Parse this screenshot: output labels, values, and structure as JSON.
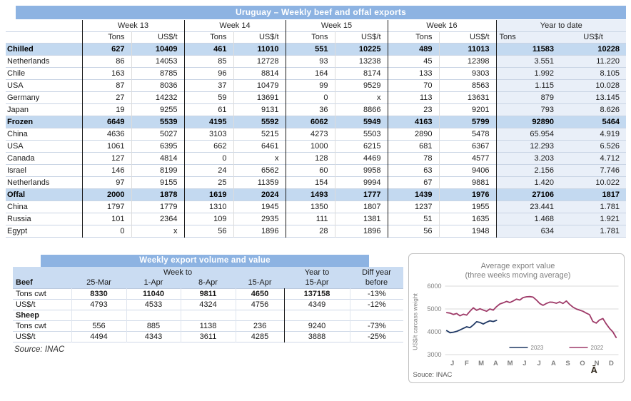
{
  "table1": {
    "title": "Uruguay – Weekly beef and offal exports",
    "week_labels": [
      "Week 13",
      "Week 14",
      "Week 15",
      "Week 16"
    ],
    "ytd_label": "Year to date",
    "tons_label": "Tons",
    "usd_label": "US$/t",
    "rows": [
      {
        "label": "Chilled",
        "bold": true,
        "values": [
          "627",
          "10409",
          "461",
          "11010",
          "551",
          "10225",
          "489",
          "11013",
          "11583",
          "10228"
        ]
      },
      {
        "label": "Netherlands",
        "values": [
          "86",
          "14053",
          "85",
          "12728",
          "93",
          "13238",
          "45",
          "12398",
          "3.551",
          "11.220"
        ]
      },
      {
        "label": "Chile",
        "values": [
          "163",
          "8785",
          "96",
          "8814",
          "164",
          "8174",
          "133",
          "9303",
          "1.992",
          "8.105"
        ]
      },
      {
        "label": "USA",
        "values": [
          "87",
          "8036",
          "37",
          "10479",
          "99",
          "9529",
          "70",
          "8563",
          "1.115",
          "10.028"
        ]
      },
      {
        "label": "Germany",
        "values": [
          "27",
          "14232",
          "59",
          "13691",
          "0",
          "x",
          "113",
          "13631",
          "879",
          "13.145"
        ]
      },
      {
        "label": "Japan",
        "values": [
          "19",
          "9255",
          "61",
          "9131",
          "36",
          "8866",
          "23",
          "9201",
          "793",
          "8.626"
        ]
      },
      {
        "label": "Frozen",
        "bold": true,
        "values": [
          "6649",
          "5539",
          "4195",
          "5592",
          "6062",
          "5949",
          "4163",
          "5799",
          "92890",
          "5464"
        ]
      },
      {
        "label": "China",
        "values": [
          "4636",
          "5027",
          "3103",
          "5215",
          "4273",
          "5503",
          "2890",
          "5478",
          "65.954",
          "4.919"
        ]
      },
      {
        "label": "USA",
        "values": [
          "1061",
          "6395",
          "662",
          "6461",
          "1000",
          "6215",
          "681",
          "6367",
          "12.293",
          "6.526"
        ]
      },
      {
        "label": "Canada",
        "values": [
          "127",
          "4814",
          "0",
          "x",
          "128",
          "4469",
          "78",
          "4577",
          "3.203",
          "4.712"
        ]
      },
      {
        "label": "Israel",
        "values": [
          "146",
          "8199",
          "24",
          "6562",
          "60",
          "9958",
          "63",
          "9406",
          "2.156",
          "7.746"
        ]
      },
      {
        "label": "Netherlands",
        "values": [
          "97",
          "9155",
          "25",
          "11359",
          "154",
          "9994",
          "67",
          "9881",
          "1.420",
          "10.022"
        ]
      },
      {
        "label": "Offal",
        "bold": true,
        "values": [
          "2000",
          "1878",
          "1619",
          "2024",
          "1493",
          "1777",
          "1439",
          "1976",
          "27106",
          "1817"
        ]
      },
      {
        "label": "China",
        "values": [
          "1797",
          "1779",
          "1310",
          "1945",
          "1350",
          "1807",
          "1237",
          "1955",
          "23.441",
          "1.781"
        ]
      },
      {
        "label": "Russia",
        "values": [
          "101",
          "2364",
          "109",
          "2935",
          "111",
          "1381",
          "51",
          "1635",
          "1.468",
          "1.921"
        ]
      },
      {
        "label": "Egypt",
        "values": [
          "0",
          "x",
          "56",
          "1896",
          "28",
          "1896",
          "56",
          "1948",
          "634",
          "1.781"
        ]
      }
    ]
  },
  "table2": {
    "title": "Weekly export volume and value",
    "week_to_label": "Week to",
    "year_to_label": "Year to",
    "diff_label": "Diff year",
    "beef_label": "Beef",
    "col_headers": [
      "25-Mar",
      "1-Apr",
      "8-Apr",
      "15-Apr",
      "15-Apr",
      "before"
    ],
    "rows": [
      {
        "label": "Tons cwt",
        "bold_values": true,
        "values": [
          "8330",
          "11040",
          "9811",
          "4650",
          "137158",
          "-13%"
        ]
      },
      {
        "label": "US$/t",
        "values": [
          "4793",
          "4533",
          "4324",
          "4756",
          "4349",
          "-12%"
        ]
      },
      {
        "label": "Sheep",
        "section": true,
        "values": [
          "",
          "",
          "",
          "",
          "",
          ""
        ]
      },
      {
        "label": "Tons cwt",
        "values": [
          "556",
          "885",
          "1138",
          "236",
          "9240",
          "-73%"
        ]
      },
      {
        "label": "US$/t",
        "values": [
          "4494",
          "4343",
          "3611",
          "4285",
          "3888",
          "-25%"
        ]
      }
    ],
    "source_note": "Source: INAC"
  },
  "chart_data": {
    "type": "line",
    "title": "Average export value",
    "subtitle": "(three weeks moving average)",
    "ylabel": "US$/t carcass weight",
    "ylim": [
      3000,
      6000
    ],
    "yticks": [
      3000,
      4000,
      5000,
      6000
    ],
    "xticklabels": [
      "J",
      "F",
      "M",
      "A",
      "M",
      "J",
      "J",
      "A",
      "S",
      "O",
      "N",
      "D"
    ],
    "x_unit": "week of year",
    "grid": true,
    "legend_position": "bottom-inside",
    "series": [
      {
        "name": "2023",
        "color": "#1f3864",
        "start_week": 1,
        "values": [
          4050,
          3960,
          3980,
          4020,
          4080,
          4150,
          4220,
          4180,
          4300,
          4440,
          4410,
          4340,
          4420,
          4480,
          4450,
          4500
        ]
      },
      {
        "name": "2022",
        "color": "#9e3a68",
        "start_week": 1,
        "values": [
          4840,
          4820,
          4760,
          4800,
          4700,
          4770,
          4730,
          4900,
          5050,
          4940,
          5010,
          4950,
          4900,
          5000,
          4950,
          5100,
          5220,
          5270,
          5330,
          5280,
          5350,
          5430,
          5390,
          5500,
          5530,
          5540,
          5520,
          5390,
          5240,
          5160,
          5240,
          5300,
          5290,
          5250,
          5310,
          5240,
          5350,
          5200,
          5080,
          5000,
          4950,
          4900,
          4820,
          4750,
          4450,
          4380,
          4520,
          4580,
          4350,
          4150,
          4000,
          3750
        ]
      }
    ],
    "source": "Souce: INAC",
    "corner_glyph": "Ā"
  },
  "colors": {
    "banner": "#8db3e2",
    "category_row": "#c3d9f0",
    "header_band": "#cadcf2",
    "ytd_bg": "#e9eff8",
    "series_2023": "#1f3864",
    "series_2022": "#9e3a68"
  }
}
